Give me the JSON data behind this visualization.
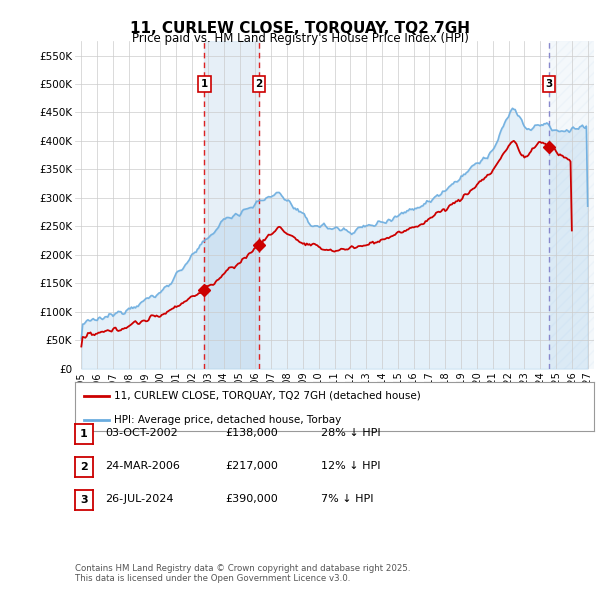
{
  "title": "11, CURLEW CLOSE, TORQUAY, TQ2 7GH",
  "subtitle": "Price paid vs. HM Land Registry's House Price Index (HPI)",
  "ylim": [
    0,
    575000
  ],
  "yticks": [
    0,
    50000,
    100000,
    150000,
    200000,
    250000,
    300000,
    350000,
    400000,
    450000,
    500000,
    550000
  ],
  "ytick_labels": [
    "£0",
    "£50K",
    "£100K",
    "£150K",
    "£200K",
    "£250K",
    "£300K",
    "£350K",
    "£400K",
    "£450K",
    "£500K",
    "£550K"
  ],
  "xlim_start": 1994.6,
  "xlim_end": 2027.4,
  "xticks": [
    1995,
    1996,
    1997,
    1998,
    1999,
    2000,
    2001,
    2002,
    2003,
    2004,
    2005,
    2006,
    2007,
    2008,
    2009,
    2010,
    2011,
    2012,
    2013,
    2014,
    2015,
    2016,
    2017,
    2018,
    2019,
    2020,
    2021,
    2022,
    2023,
    2024,
    2025,
    2026,
    2027
  ],
  "sale_dates": [
    2002.77,
    2006.23,
    2024.56
  ],
  "sale_prices": [
    138000,
    217000,
    390000
  ],
  "sale_labels": [
    "1",
    "2",
    "3"
  ],
  "hpi_color": "#6aacdf",
  "price_color": "#cc0000",
  "sale_marker_color": "#cc0000",
  "vline1_color": "#dd2222",
  "vline2_color": "#dd2222",
  "vline3_color": "#8888cc",
  "shade_color": "#dce9f5",
  "legend_line1": "11, CURLEW CLOSE, TORQUAY, TQ2 7GH (detached house)",
  "legend_line2": "HPI: Average price, detached house, Torbay",
  "table_data": [
    [
      "1",
      "03-OCT-2002",
      "£138,000",
      "28% ↓ HPI"
    ],
    [
      "2",
      "24-MAR-2006",
      "£217,000",
      "12% ↓ HPI"
    ],
    [
      "3",
      "26-JUL-2024",
      "£390,000",
      "7% ↓ HPI"
    ]
  ],
  "footnote": "Contains HM Land Registry data © Crown copyright and database right 2025.\nThis data is licensed under the Open Government Licence v3.0.",
  "background_color": "#ffffff",
  "grid_color": "#cccccc"
}
